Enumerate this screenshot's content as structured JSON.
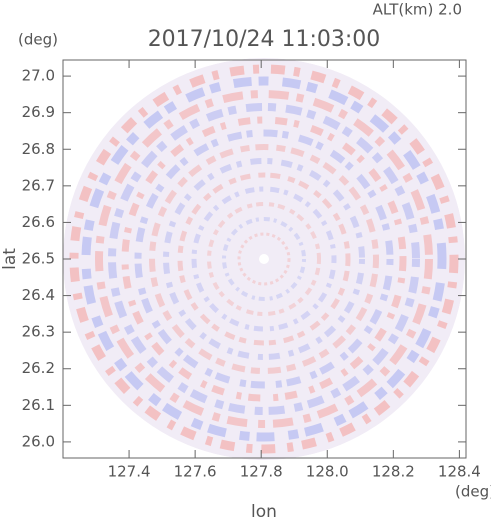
{
  "chart_data": {
    "type": "radar-ppi",
    "title": "2017/10/24 11:03:00",
    "subtitle": "ALT(km) 2.0",
    "x_label": "lon",
    "y_label": "lat",
    "x_unit": "(deg)",
    "y_unit": "(deg)",
    "xlim": [
      127.2,
      128.42
    ],
    "ylim": [
      25.956,
      27.044
    ],
    "xticks": [
      127.4,
      127.6,
      127.8,
      {
        "value": 128.0,
        "label": "128.0"
      },
      128.2,
      128.4
    ],
    "yticks": [
      {
        "value": 26.0,
        "label": "26.0"
      },
      26.1,
      26.2,
      26.3,
      26.4,
      26.5,
      26.6,
      26.7,
      26.8,
      26.9,
      {
        "value": 27.0,
        "label": "27.0"
      }
    ]
  }
}
